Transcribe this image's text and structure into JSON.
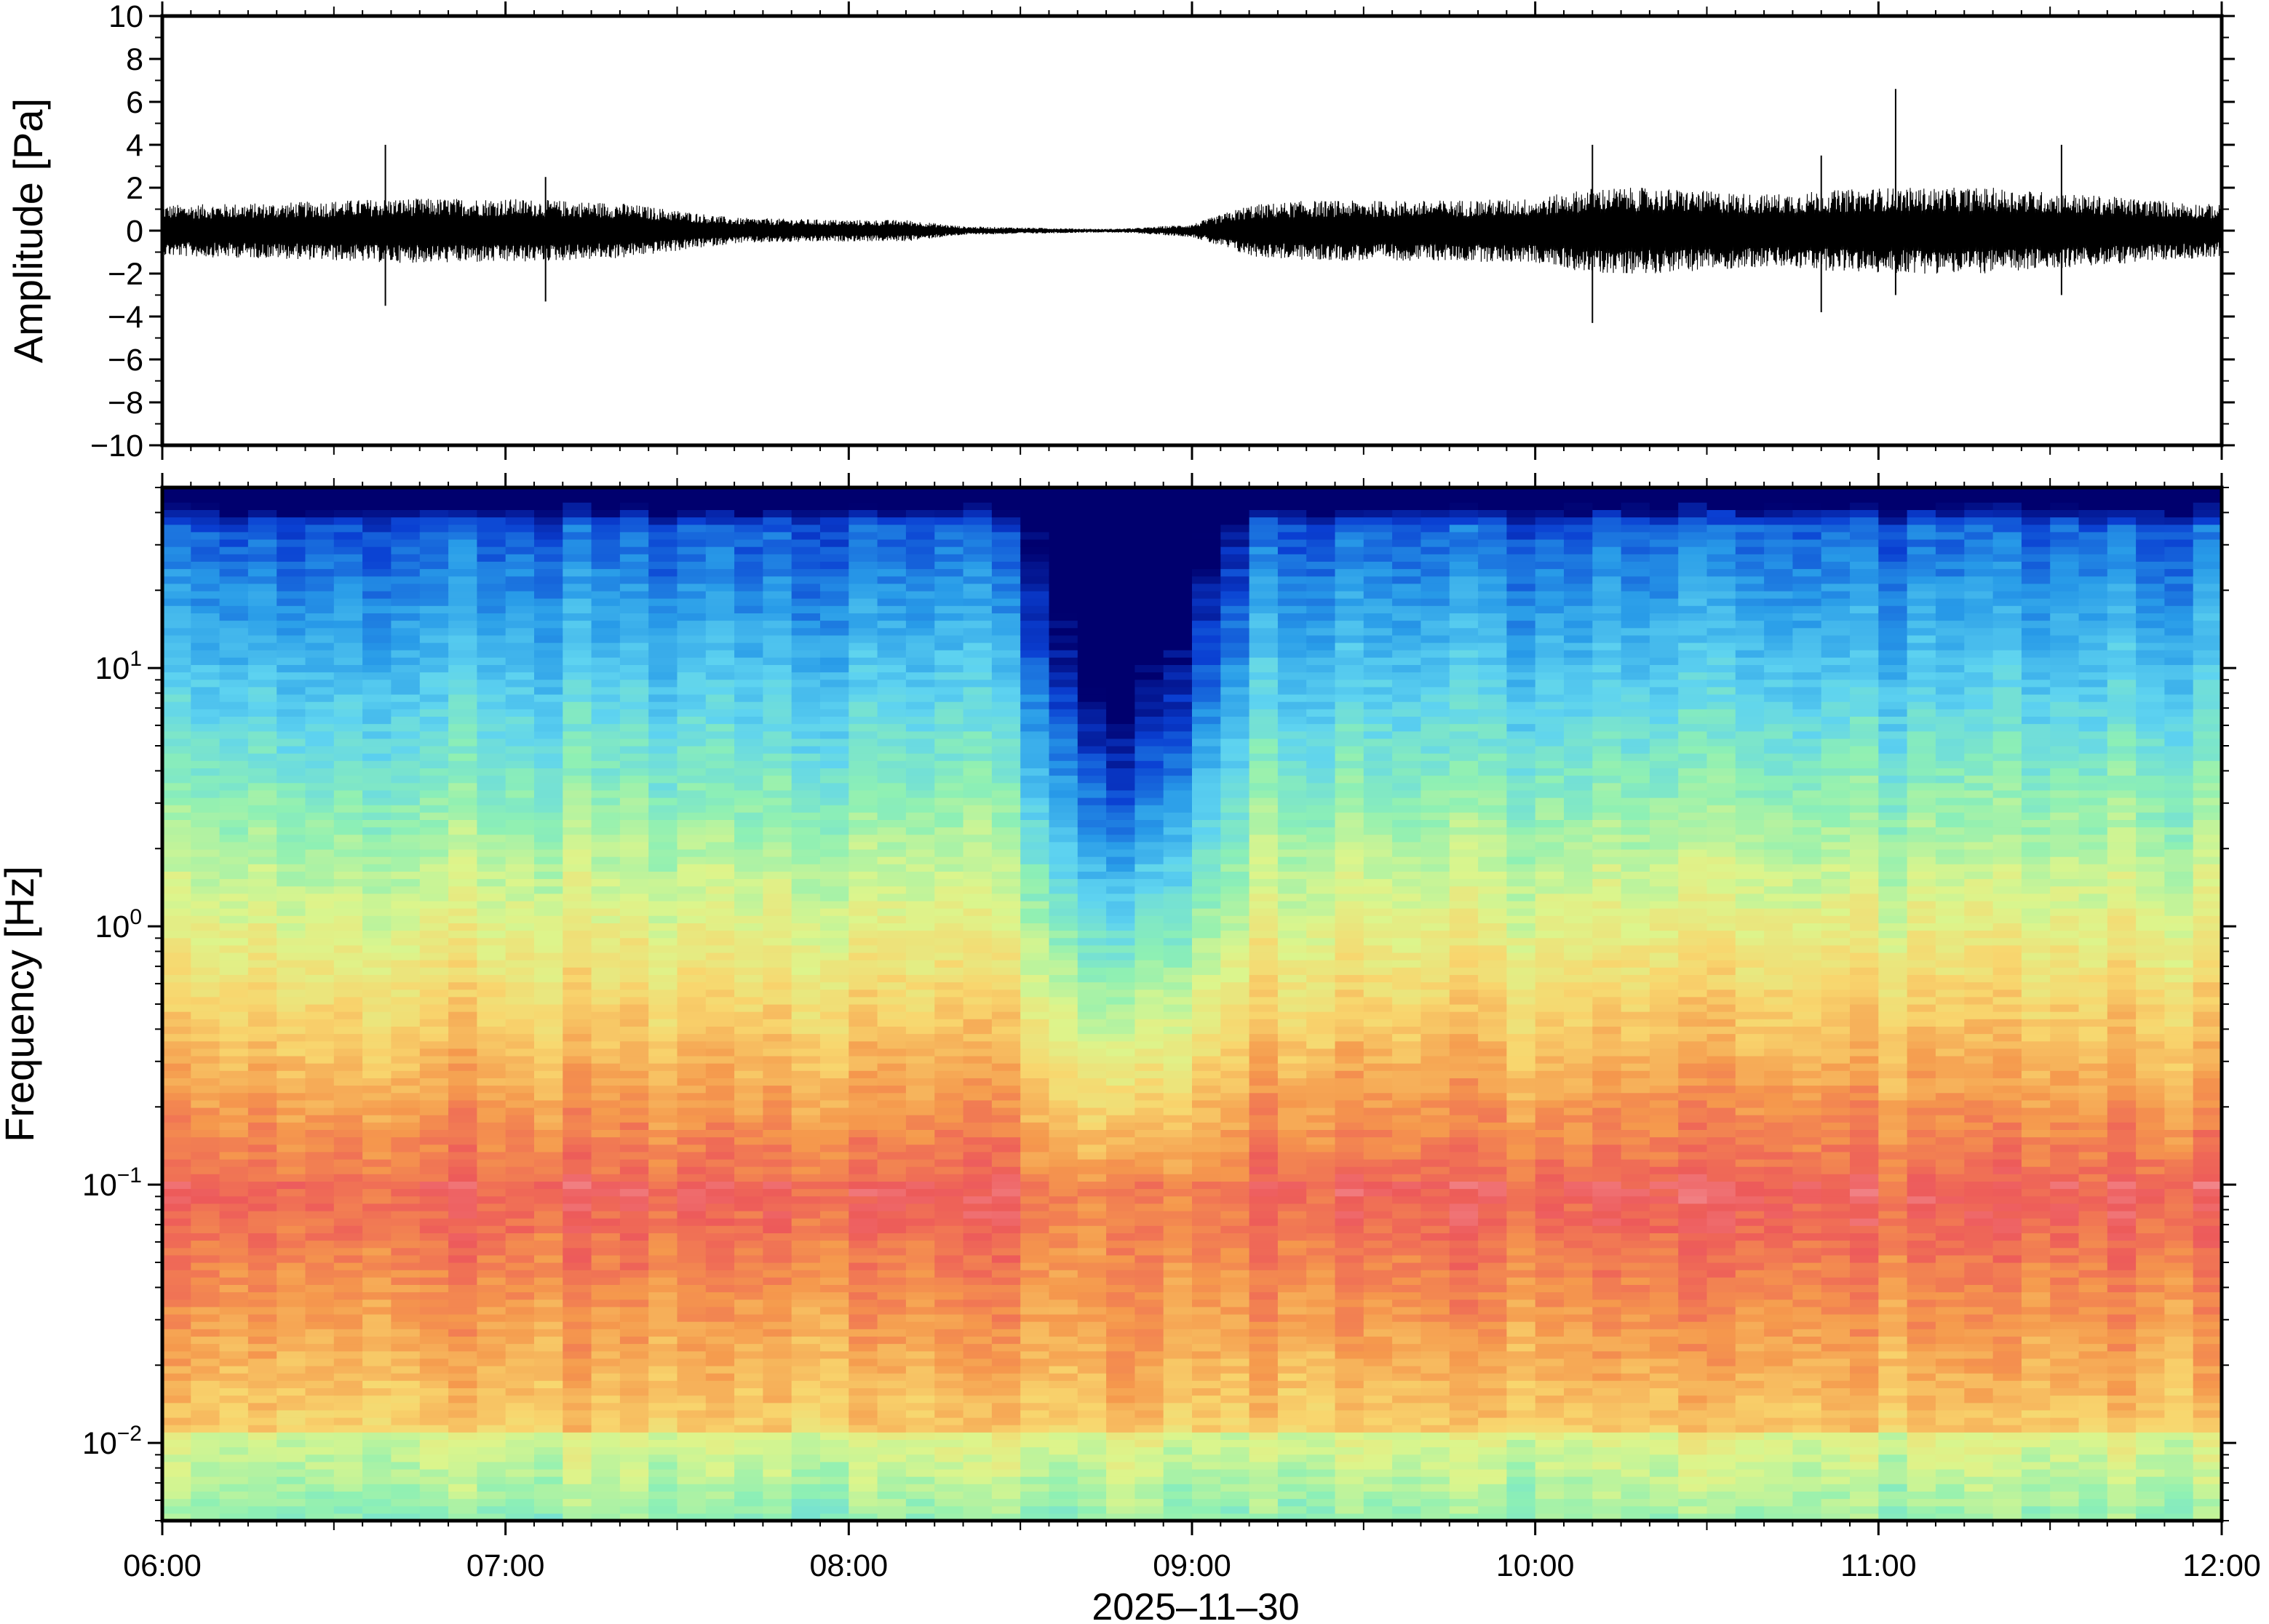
{
  "chart_data": [
    {
      "type": "line",
      "panel": "waveform",
      "ylabel": "Amplitude [Pa]",
      "ylim": [
        -10,
        10
      ],
      "yticks": [
        10,
        8,
        6,
        4,
        2,
        0,
        -2,
        -4,
        -6,
        -8,
        -10
      ],
      "ytick_labels": [
        "10",
        "8",
        "6",
        "4",
        "2",
        "0",
        "−2",
        "−4",
        "−6",
        "−8",
        "−10"
      ],
      "xlim": [
        "06:00",
        "12:00"
      ],
      "grid": false,
      "line_color": "#000000",
      "envelope": {
        "description": "approximate amplitude envelope (Pa) of the pressure trace, sampled along the time axis",
        "x": [
          "06:00",
          "06:20",
          "06:40",
          "07:00",
          "07:20",
          "07:40",
          "08:00",
          "08:10",
          "08:20",
          "08:30",
          "08:40",
          "08:45",
          "08:50",
          "09:00",
          "09:10",
          "09:20",
          "09:40",
          "10:00",
          "10:10",
          "10:20",
          "10:40",
          "11:00",
          "11:20",
          "11:40",
          "12:00"
        ],
        "y": [
          1.2,
          1.3,
          1.5,
          1.5,
          1.3,
          0.6,
          0.5,
          0.5,
          0.2,
          0.15,
          0.1,
          0.08,
          0.12,
          0.3,
          1.2,
          1.4,
          1.4,
          1.5,
          2.0,
          2.0,
          1.7,
          2.0,
          2.0,
          1.6,
          1.2
        ]
      },
      "spikes": [
        {
          "x": "06:39",
          "ymax": 4.0,
          "ymin": -3.5
        },
        {
          "x": "07:07",
          "ymax": 2.5,
          "ymin": -3.3
        },
        {
          "x": "10:10",
          "ymax": 4.0,
          "ymin": -4.3
        },
        {
          "x": "10:50",
          "ymax": 3.5,
          "ymin": -3.8
        },
        {
          "x": "11:03",
          "ymax": 6.6,
          "ymin": -3.0
        },
        {
          "x": "11:32",
          "ymax": 4.0,
          "ymin": -3.0
        }
      ]
    },
    {
      "type": "heatmap",
      "panel": "spectrogram",
      "ylabel": "Frequency [Hz]",
      "yscale": "log",
      "ylim": [
        0.005,
        50
      ],
      "yticks": [
        10,
        1,
        0.1,
        0.01
      ],
      "ytick_labels": [
        {
          "base": "10",
          "exp": "1"
        },
        {
          "base": "10",
          "exp": "0"
        },
        {
          "base": "10",
          "exp": "−1"
        },
        {
          "base": "10",
          "exp": "−2"
        }
      ],
      "xlabel": "2025–11–30",
      "xlim": [
        "06:00",
        "12:00"
      ],
      "xticks": [
        "06:00",
        "07:00",
        "08:00",
        "09:00",
        "10:00",
        "11:00",
        "12:00"
      ],
      "colormap": [
        "#00006e",
        "#0a3fd2",
        "#289be8",
        "#5ed3f0",
        "#8ef0b4",
        "#dcf58c",
        "#f8d66e",
        "#f5994d",
        "#ed5a5a",
        "#f5a0a6"
      ],
      "description": "power spectral density; low-power blue at high frequency, high-power red near 0.03–0.3 Hz; a quiet notch centred near 08:45",
      "quiet_interval": [
        "08:15",
        "09:05"
      ]
    }
  ]
}
